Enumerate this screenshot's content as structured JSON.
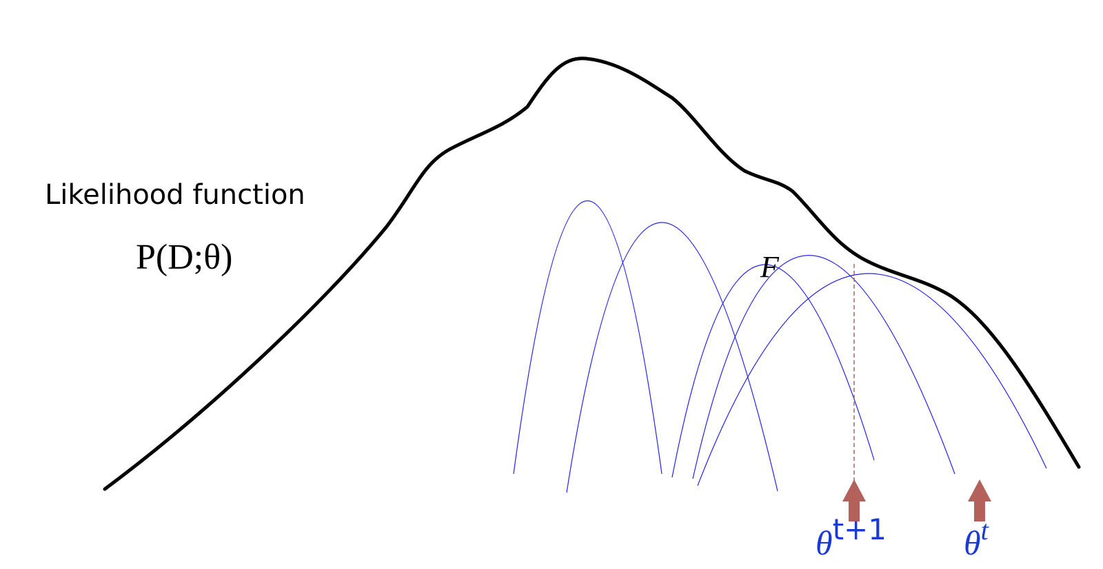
{
  "labels": {
    "likelihood_title": "Likelihood function",
    "likelihood_formula": "P(D;θ)",
    "bound_label": "F",
    "theta_next_base": "θ",
    "theta_next_sup": "t+1",
    "theta_current_base": "θ",
    "theta_current_sup": "t"
  },
  "colors": {
    "likelihood_curve": "#000000",
    "bound_curves": "#2222ee",
    "arrow": "#b5615b",
    "dashed_guide": "#b5615b",
    "theta_labels": "#1a3ad6",
    "text": "#000000"
  },
  "icons": {
    "theta_next_marker": "arrow-up-icon",
    "theta_current_marker": "arrow-up-icon"
  }
}
